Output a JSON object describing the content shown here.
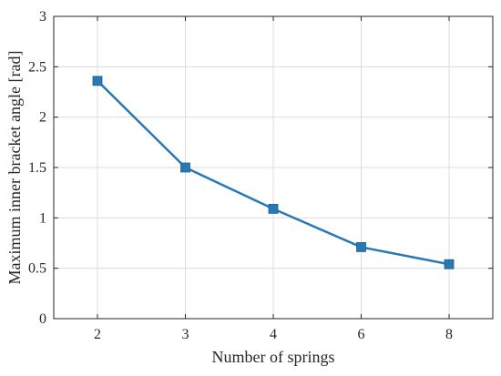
{
  "chart_data": {
    "type": "line",
    "title": "",
    "xlabel": "Number of springs",
    "ylabel": "Maximum inner bracket angle [rad]",
    "categories": [
      "2",
      "3",
      "4",
      "6",
      "8"
    ],
    "series": [
      {
        "values": [
          2.36,
          1.5,
          1.09,
          0.71,
          0.54
        ],
        "color": "#2878b5",
        "marker": "square"
      }
    ],
    "ylim": [
      0,
      3
    ],
    "yticks": [
      "0",
      "0.5",
      "1",
      "1.5",
      "2",
      "2.5",
      "3"
    ],
    "grid": true,
    "legend": "none"
  }
}
